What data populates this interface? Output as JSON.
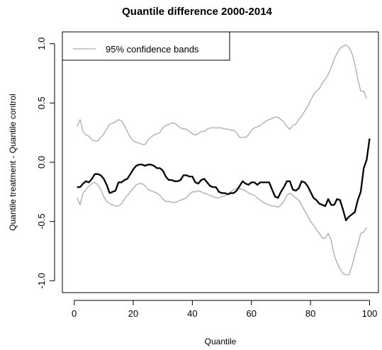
{
  "chart_data": {
    "type": "line",
    "title": "Quantile difference 2000-2014",
    "xlabel": "Quantile",
    "ylabel": "Quantile treatment - Quantile control",
    "xlim": [
      -4,
      103
    ],
    "ylim": [
      -1.1,
      1.1
    ],
    "x_ticks": [
      0,
      20,
      40,
      60,
      80,
      100
    ],
    "x_tick_labels": [
      "0",
      "20",
      "40",
      "60",
      "80",
      "100"
    ],
    "y_ticks": [
      -1.0,
      -0.5,
      0.0,
      0.5,
      1.0
    ],
    "y_tick_labels": [
      "-1.0",
      "-0.5",
      "0.0",
      "0.5",
      "1.0"
    ],
    "grid": false,
    "legend": {
      "position": "top-left",
      "entries": [
        {
          "label": "95% confidence bands",
          "color": "#aaaaaa"
        }
      ]
    },
    "series": [
      {
        "name": "",
        "color": "#000000",
        "points": [
          [
            1,
            -0.21
          ],
          [
            2,
            -0.21
          ],
          [
            3,
            -0.18
          ],
          [
            4,
            -0.16
          ],
          [
            5,
            -0.17
          ],
          [
            6,
            -0.14
          ],
          [
            7,
            -0.1
          ],
          [
            8,
            -0.1
          ],
          [
            9,
            -0.11
          ],
          [
            10,
            -0.14
          ],
          [
            11,
            -0.19
          ],
          [
            12,
            -0.26
          ],
          [
            13,
            -0.25
          ],
          [
            14,
            -0.24
          ],
          [
            15,
            -0.17
          ],
          [
            16,
            -0.17
          ],
          [
            17,
            -0.15
          ],
          [
            18,
            -0.14
          ],
          [
            19,
            -0.1
          ],
          [
            20,
            -0.06
          ],
          [
            21,
            -0.03
          ],
          [
            22,
            -0.02
          ],
          [
            23,
            -0.02
          ],
          [
            24,
            -0.03
          ],
          [
            25,
            -0.02
          ],
          [
            26,
            -0.02
          ],
          [
            27,
            -0.03
          ],
          [
            28,
            -0.05
          ],
          [
            29,
            -0.05
          ],
          [
            30,
            -0.07
          ],
          [
            31,
            -0.12
          ],
          [
            32,
            -0.15
          ],
          [
            33,
            -0.15
          ],
          [
            34,
            -0.16
          ],
          [
            35,
            -0.16
          ],
          [
            36,
            -0.15
          ],
          [
            37,
            -0.11
          ],
          [
            38,
            -0.11
          ],
          [
            39,
            -0.12
          ],
          [
            40,
            -0.12
          ],
          [
            41,
            -0.17
          ],
          [
            42,
            -0.18
          ],
          [
            43,
            -0.15
          ],
          [
            44,
            -0.14
          ],
          [
            45,
            -0.17
          ],
          [
            46,
            -0.2
          ],
          [
            47,
            -0.21
          ],
          [
            48,
            -0.21
          ],
          [
            49,
            -0.25
          ],
          [
            50,
            -0.26
          ],
          [
            51,
            -0.26
          ],
          [
            52,
            -0.27
          ],
          [
            53,
            -0.26
          ],
          [
            54,
            -0.26
          ],
          [
            55,
            -0.24
          ],
          [
            56,
            -0.2
          ],
          [
            57,
            -0.16
          ],
          [
            58,
            -0.18
          ],
          [
            59,
            -0.19
          ],
          [
            60,
            -0.17
          ],
          [
            61,
            -0.17
          ],
          [
            62,
            -0.19
          ],
          [
            63,
            -0.17
          ],
          [
            64,
            -0.17
          ],
          [
            65,
            -0.17
          ],
          [
            66,
            -0.17
          ],
          [
            67,
            -0.23
          ],
          [
            68,
            -0.29
          ],
          [
            69,
            -0.3
          ],
          [
            70,
            -0.25
          ],
          [
            71,
            -0.21
          ],
          [
            72,
            -0.16
          ],
          [
            73,
            -0.16
          ],
          [
            74,
            -0.23
          ],
          [
            75,
            -0.24
          ],
          [
            76,
            -0.22
          ],
          [
            77,
            -0.16
          ],
          [
            78,
            -0.17
          ],
          [
            79,
            -0.2
          ],
          [
            80,
            -0.25
          ],
          [
            81,
            -0.3
          ],
          [
            82,
            -0.32
          ],
          [
            83,
            -0.35
          ],
          [
            84,
            -0.36
          ],
          [
            85,
            -0.37
          ],
          [
            86,
            -0.31
          ],
          [
            87,
            -0.36
          ],
          [
            88,
            -0.36
          ],
          [
            89,
            -0.31
          ],
          [
            90,
            -0.32
          ],
          [
            91,
            -0.4
          ],
          [
            92,
            -0.49
          ],
          [
            93,
            -0.46
          ],
          [
            94,
            -0.44
          ],
          [
            95,
            -0.42
          ],
          [
            96,
            -0.32
          ],
          [
            97,
            -0.25
          ],
          [
            98,
            -0.05
          ],
          [
            99,
            0.02
          ],
          [
            100,
            0.2
          ]
        ]
      },
      {
        "name": "95% confidence bands",
        "color": "#aaaaaa",
        "points": [
          [
            1,
            0.3
          ],
          [
            2,
            0.36
          ],
          [
            3,
            0.26
          ],
          [
            4,
            0.23
          ],
          [
            5,
            0.22
          ],
          [
            6,
            0.19
          ],
          [
            7,
            0.18
          ],
          [
            8,
            0.18
          ],
          [
            9,
            0.21
          ],
          [
            10,
            0.24
          ],
          [
            11,
            0.28
          ],
          [
            12,
            0.32
          ],
          [
            13,
            0.33
          ],
          [
            14,
            0.34
          ],
          [
            15,
            0.36
          ],
          [
            16,
            0.35
          ],
          [
            17,
            0.31
          ],
          [
            18,
            0.26
          ],
          [
            19,
            0.21
          ],
          [
            20,
            0.18
          ],
          [
            21,
            0.17
          ],
          [
            22,
            0.16
          ],
          [
            23,
            0.15
          ],
          [
            24,
            0.15
          ],
          [
            25,
            0.19
          ],
          [
            26,
            0.21
          ],
          [
            27,
            0.23
          ],
          [
            28,
            0.24
          ],
          [
            29,
            0.25
          ],
          [
            30,
            0.29
          ],
          [
            31,
            0.31
          ],
          [
            32,
            0.32
          ],
          [
            33,
            0.33
          ],
          [
            34,
            0.33
          ],
          [
            35,
            0.31
          ],
          [
            36,
            0.29
          ],
          [
            37,
            0.28
          ],
          [
            38,
            0.28
          ],
          [
            39,
            0.26
          ],
          [
            40,
            0.24
          ],
          [
            41,
            0.23
          ],
          [
            42,
            0.24
          ],
          [
            43,
            0.26
          ],
          [
            44,
            0.26
          ],
          [
            45,
            0.28
          ],
          [
            46,
            0.29
          ],
          [
            47,
            0.29
          ],
          [
            48,
            0.29
          ],
          [
            49,
            0.29
          ],
          [
            50,
            0.29
          ],
          [
            51,
            0.28
          ],
          [
            52,
            0.28
          ],
          [
            53,
            0.27
          ],
          [
            54,
            0.27
          ],
          [
            55,
            0.25
          ],
          [
            56,
            0.21
          ],
          [
            57,
            0.21
          ],
          [
            58,
            0.21
          ],
          [
            59,
            0.23
          ],
          [
            60,
            0.27
          ],
          [
            61,
            0.29
          ],
          [
            62,
            0.3
          ],
          [
            63,
            0.31
          ],
          [
            64,
            0.33
          ],
          [
            65,
            0.35
          ],
          [
            66,
            0.36
          ],
          [
            67,
            0.37
          ],
          [
            68,
            0.38
          ],
          [
            69,
            0.38
          ],
          [
            70,
            0.36
          ],
          [
            71,
            0.34
          ],
          [
            72,
            0.3
          ],
          [
            73,
            0.28
          ],
          [
            74,
            0.31
          ],
          [
            75,
            0.32
          ],
          [
            76,
            0.36
          ],
          [
            77,
            0.39
          ],
          [
            78,
            0.43
          ],
          [
            79,
            0.47
          ],
          [
            80,
            0.52
          ],
          [
            81,
            0.57
          ],
          [
            82,
            0.6
          ],
          [
            83,
            0.62
          ],
          [
            84,
            0.67
          ],
          [
            85,
            0.7
          ],
          [
            86,
            0.74
          ],
          [
            87,
            0.8
          ],
          [
            88,
            0.87
          ],
          [
            89,
            0.92
          ],
          [
            90,
            0.96
          ],
          [
            91,
            0.98
          ],
          [
            92,
            0.99
          ],
          [
            93,
            0.97
          ],
          [
            94,
            0.92
          ],
          [
            95,
            0.83
          ],
          [
            96,
            0.7
          ],
          [
            97,
            0.6
          ],
          [
            98,
            0.6
          ],
          [
            99,
            0.54
          ]
        ]
      },
      {
        "name": "95% confidence bands",
        "color": "#aaaaaa",
        "points": [
          [
            1,
            -0.3
          ],
          [
            2,
            -0.36
          ],
          [
            3,
            -0.26
          ],
          [
            4,
            -0.23
          ],
          [
            5,
            -0.2
          ],
          [
            6,
            -0.18
          ],
          [
            7,
            -0.17
          ],
          [
            8,
            -0.19
          ],
          [
            9,
            -0.23
          ],
          [
            10,
            -0.29
          ],
          [
            11,
            -0.33
          ],
          [
            12,
            -0.35
          ],
          [
            13,
            -0.36
          ],
          [
            14,
            -0.37
          ],
          [
            15,
            -0.37
          ],
          [
            16,
            -0.35
          ],
          [
            17,
            -0.31
          ],
          [
            18,
            -0.28
          ],
          [
            19,
            -0.25
          ],
          [
            20,
            -0.22
          ],
          [
            21,
            -0.19
          ],
          [
            22,
            -0.18
          ],
          [
            23,
            -0.18
          ],
          [
            24,
            -0.2
          ],
          [
            25,
            -0.23
          ],
          [
            26,
            -0.24
          ],
          [
            27,
            -0.25
          ],
          [
            28,
            -0.26
          ],
          [
            29,
            -0.28
          ],
          [
            30,
            -0.31
          ],
          [
            31,
            -0.33
          ],
          [
            32,
            -0.33
          ],
          [
            33,
            -0.34
          ],
          [
            34,
            -0.34
          ],
          [
            35,
            -0.33
          ],
          [
            36,
            -0.32
          ],
          [
            37,
            -0.31
          ],
          [
            38,
            -0.3
          ],
          [
            39,
            -0.27
          ],
          [
            40,
            -0.25
          ],
          [
            41,
            -0.25
          ],
          [
            42,
            -0.24
          ],
          [
            43,
            -0.25
          ],
          [
            44,
            -0.26
          ],
          [
            45,
            -0.27
          ],
          [
            46,
            -0.28
          ],
          [
            47,
            -0.29
          ],
          [
            48,
            -0.3
          ],
          [
            49,
            -0.3
          ],
          [
            50,
            -0.29
          ],
          [
            51,
            -0.28
          ],
          [
            52,
            -0.27
          ],
          [
            53,
            -0.25
          ],
          [
            54,
            -0.23
          ],
          [
            55,
            -0.22
          ],
          [
            56,
            -0.22
          ],
          [
            57,
            -0.23
          ],
          [
            58,
            -0.24
          ],
          [
            59,
            -0.26
          ],
          [
            60,
            -0.27
          ],
          [
            61,
            -0.28
          ],
          [
            62,
            -0.3
          ],
          [
            63,
            -0.32
          ],
          [
            64,
            -0.34
          ],
          [
            65,
            -0.35
          ],
          [
            66,
            -0.36
          ],
          [
            67,
            -0.37
          ],
          [
            68,
            -0.37
          ],
          [
            69,
            -0.38
          ],
          [
            70,
            -0.36
          ],
          [
            71,
            -0.33
          ],
          [
            72,
            -0.28
          ],
          [
            73,
            -0.26
          ],
          [
            74,
            -0.28
          ],
          [
            75,
            -0.3
          ],
          [
            76,
            -0.32
          ],
          [
            77,
            -0.36
          ],
          [
            78,
            -0.41
          ],
          [
            79,
            -0.45
          ],
          [
            80,
            -0.5
          ],
          [
            81,
            -0.53
          ],
          [
            82,
            -0.57
          ],
          [
            83,
            -0.6
          ],
          [
            84,
            -0.64
          ],
          [
            85,
            -0.64
          ],
          [
            86,
            -0.6
          ],
          [
            87,
            -0.66
          ],
          [
            88,
            -0.78
          ],
          [
            89,
            -0.85
          ],
          [
            90,
            -0.9
          ],
          [
            91,
            -0.94
          ],
          [
            92,
            -0.95
          ],
          [
            93,
            -0.95
          ],
          [
            94,
            -0.88
          ],
          [
            95,
            -0.78
          ],
          [
            96,
            -0.7
          ],
          [
            97,
            -0.6
          ],
          [
            98,
            -0.59
          ],
          [
            99,
            -0.55
          ]
        ]
      }
    ]
  }
}
